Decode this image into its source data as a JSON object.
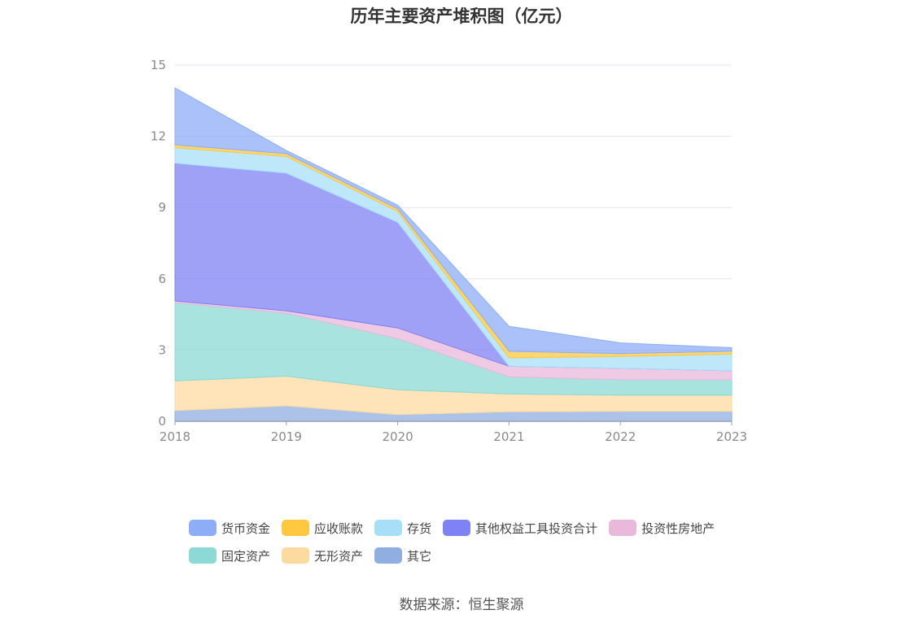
{
  "chart_data": {
    "type": "area",
    "stacked": true,
    "title": "历年主要资产堆积图（亿元）",
    "categories": [
      "2018",
      "2019",
      "2020",
      "2021",
      "2022",
      "2023"
    ],
    "ylim": [
      0,
      15
    ],
    "yticks": [
      0,
      3,
      6,
      9,
      12,
      15
    ],
    "grid": true,
    "legend_position": "bottom",
    "series": [
      {
        "name": "其它",
        "color": "#90aee0",
        "values": [
          0.45,
          0.65,
          0.28,
          0.4,
          0.42,
          0.42
        ]
      },
      {
        "name": "无形资产",
        "color": "#fddba0",
        "values": [
          1.25,
          1.25,
          1.05,
          0.75,
          0.68,
          0.68
        ]
      },
      {
        "name": "固定资产",
        "color": "#8cd9d6",
        "values": [
          3.3,
          2.65,
          2.15,
          0.72,
          0.65,
          0.65
        ]
      },
      {
        "name": "投资性房地产",
        "color": "#eab8db",
        "values": [
          0.07,
          0.1,
          0.45,
          0.45,
          0.48,
          0.38
        ]
      },
      {
        "name": "其他权益工具投资合计",
        "color": "#7f82f4",
        "values": [
          5.8,
          5.8,
          4.45,
          0.0,
          0.0,
          0.0
        ]
      },
      {
        "name": "存货",
        "color": "#a8dff8",
        "values": [
          0.65,
          0.7,
          0.45,
          0.35,
          0.5,
          0.7
        ]
      },
      {
        "name": "应收账款",
        "color": "#fec840",
        "values": [
          0.12,
          0.12,
          0.12,
          0.28,
          0.12,
          0.12
        ]
      },
      {
        "name": "货币资金",
        "color": "#8dadf7",
        "values": [
          2.4,
          0.13,
          0.15,
          1.05,
          0.45,
          0.15
        ]
      }
    ],
    "legend_order": [
      "货币资金",
      "应收账款",
      "存货",
      "其他权益工具投资合计",
      "投资性房地产",
      "固定资产",
      "无形资产",
      "其它"
    ]
  },
  "source_text": "数据来源：恒生聚源"
}
